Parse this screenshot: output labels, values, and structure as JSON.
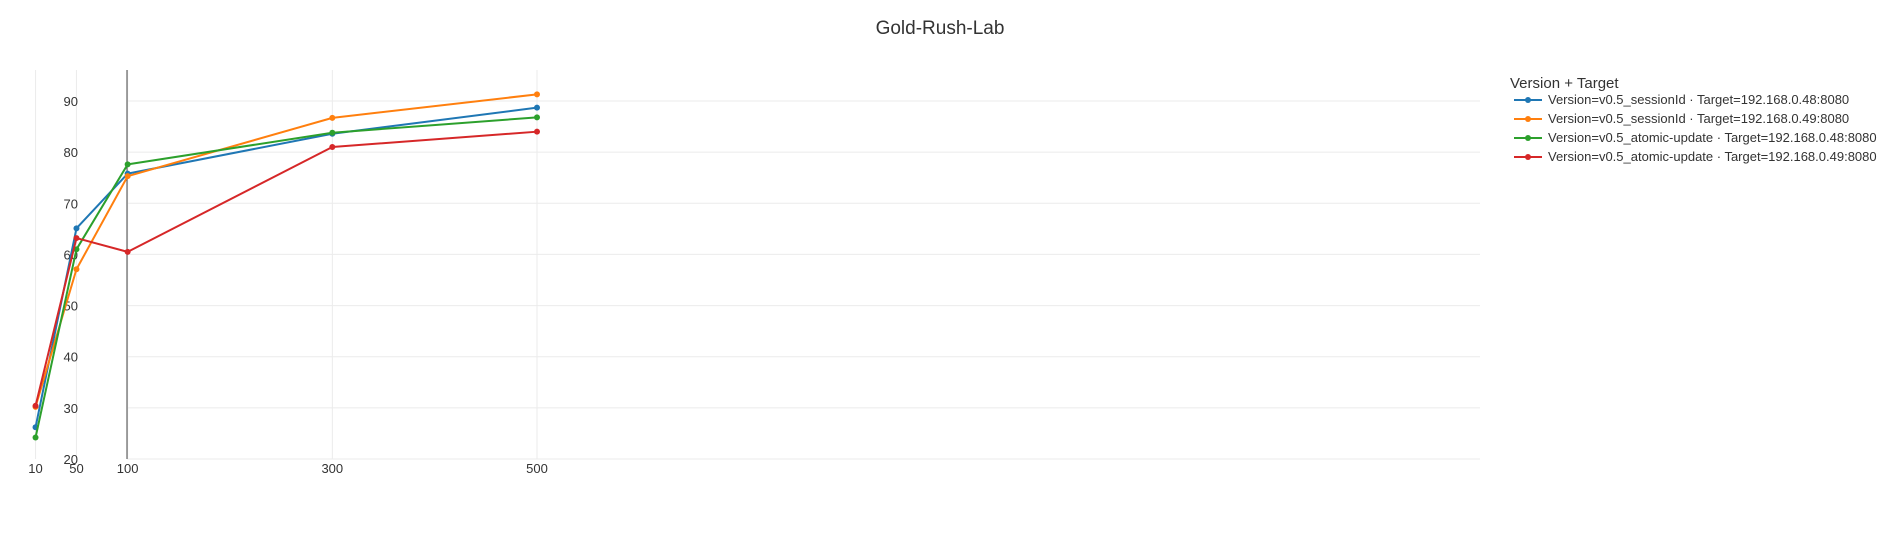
{
  "chart_data": {
    "type": "line",
    "title": "Gold-Rush-Lab",
    "xlabel": "",
    "ylabel": "",
    "x": [
      10,
      50,
      100,
      300,
      500
    ],
    "x_tick_labels": [
      "10",
      "50",
      "100",
      "300",
      "500"
    ],
    "xlim": [
      0,
      500
    ],
    "ylim": [
      20,
      96
    ],
    "y_ticks": [
      20,
      30,
      40,
      50,
      60,
      70,
      80,
      90
    ],
    "y_tick_labels": [
      "20",
      "30",
      "40",
      "50",
      "60",
      "70",
      "80",
      "90"
    ],
    "grid": true,
    "legend": {
      "title": "Version + Target",
      "placement": "top-right"
    },
    "series": [
      {
        "name": "Version=v0.5_sessionId · Target=192.168.0.48:8080",
        "color": "#1f77b4",
        "values": [
          26.2,
          65.1,
          75.8,
          83.6,
          88.7
        ]
      },
      {
        "name": "Version=v0.5_sessionId · Target=192.168.0.49:8080",
        "color": "#ff7f0e",
        "values": [
          30.2,
          57.1,
          75.3,
          86.7,
          91.3
        ]
      },
      {
        "name": "Version=v0.5_atomic-update · Target=192.168.0.48:8080",
        "color": "#2ca02c",
        "values": [
          24.2,
          61.0,
          77.6,
          83.8,
          86.8
        ]
      },
      {
        "name": "Version=v0.5_atomic-update · Target=192.168.0.49:8080",
        "color": "#d62728",
        "values": [
          30.4,
          63.2,
          60.5,
          81.0,
          84.0
        ]
      }
    ]
  }
}
